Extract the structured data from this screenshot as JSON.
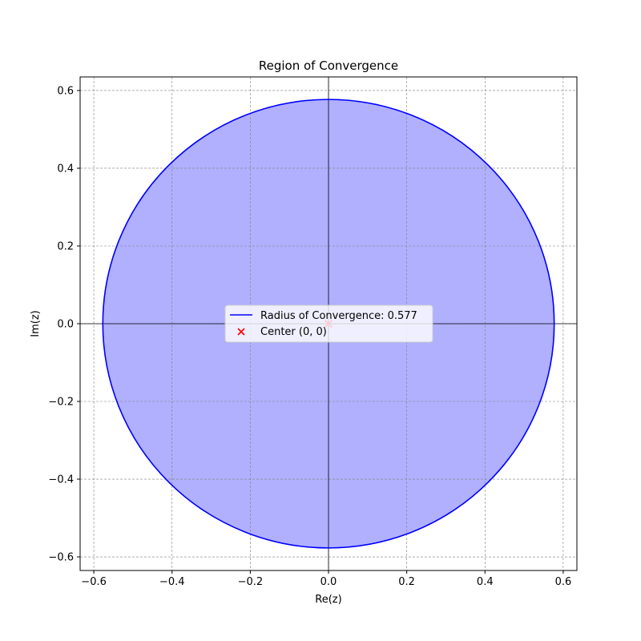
{
  "chart_data": {
    "type": "line",
    "title": "Region of Convergence",
    "xlabel": "Re(z)",
    "ylabel": "Im(z)",
    "xlim": [
      -0.635,
      0.635
    ],
    "ylim": [
      -0.635,
      0.635
    ],
    "xticks": [
      -0.6,
      -0.4,
      -0.2,
      0.0,
      0.2,
      0.4,
      0.6
    ],
    "yticks": [
      -0.6,
      -0.4,
      -0.2,
      0.0,
      0.2,
      0.4,
      0.6
    ],
    "xtick_labels": [
      "−0.6",
      "−0.4",
      "−0.2",
      "0.0",
      "0.2",
      "0.4",
      "0.6"
    ],
    "ytick_labels": [
      "−0.6",
      "−0.4",
      "−0.2",
      "0.0",
      "0.2",
      "0.4",
      "0.6"
    ],
    "grid": true,
    "legend_position": "center",
    "series": [
      {
        "name": "Radius of Convergence: 0.577",
        "kind": "circle",
        "center": [
          0,
          0
        ],
        "radius": 0.577,
        "color": "#0000ff",
        "fill_color": "#b0b0ff"
      },
      {
        "name": "Center (0, 0)",
        "kind": "scatter",
        "marker": "x",
        "points": [
          [
            0,
            0
          ]
        ],
        "color": "#ff0000"
      }
    ],
    "reference_lines": {
      "x": 0,
      "y": 0,
      "color": "#000000"
    }
  }
}
